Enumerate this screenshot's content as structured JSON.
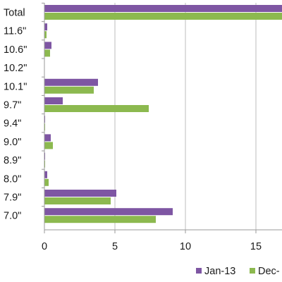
{
  "chart_data": {
    "type": "bar",
    "orientation": "horizontal",
    "categories": [
      "Total",
      "11.6\"",
      "10.6\"",
      "10.2\"",
      "10.1\"",
      "9.7\"",
      "9.4\"",
      "9.0\"",
      "8.9\"",
      "8.0\"",
      "7.9\"",
      "7.0\""
    ],
    "series": [
      {
        "name": "Jan-13",
        "color": "#7e56a3",
        "values": [
          17.0,
          0.2,
          0.5,
          0.0,
          3.8,
          1.3,
          0.05,
          0.45,
          0.05,
          0.2,
          5.1,
          9.1
        ]
      },
      {
        "name": "Dec-",
        "color": "#8cb94f",
        "values": [
          17.0,
          0.15,
          0.4,
          0.0,
          3.5,
          7.4,
          0.05,
          0.6,
          0.05,
          0.3,
          4.7,
          7.9
        ]
      }
    ],
    "xticks": [
      0,
      5,
      10,
      15
    ],
    "xlim": [
      0,
      16.9
    ],
    "grid": true,
    "legend_position": "bottom"
  }
}
